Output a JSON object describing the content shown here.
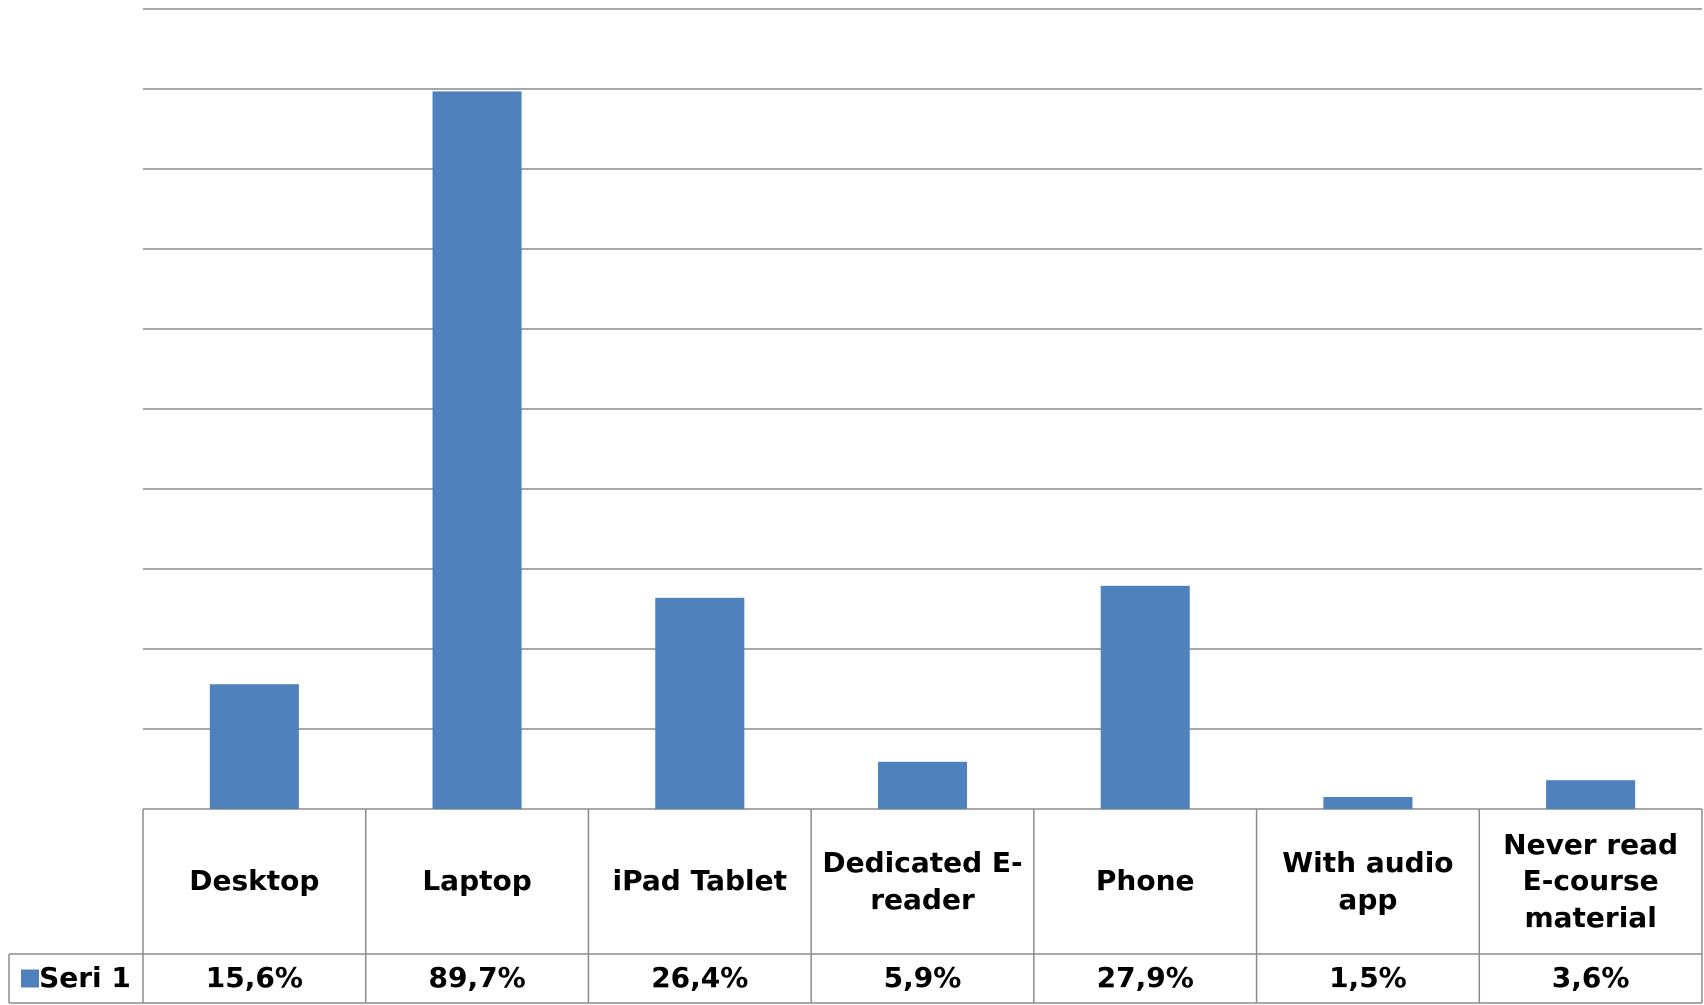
{
  "chart_data": {
    "type": "bar",
    "categories": [
      "Desktop",
      "Laptop",
      "iPad Tablet",
      "Dedicated E-reader",
      "Phone",
      "With audio app",
      "Never read E-course material"
    ],
    "series": [
      {
        "name": "Seri 1",
        "color": "#4f81bd",
        "values": [
          15.6,
          89.7,
          26.4,
          5.9,
          27.9,
          1.5,
          3.6
        ],
        "value_labels": [
          "15,6%",
          "89,7%",
          "26,4%",
          "5,9%",
          "27,9%",
          "1,5%",
          "3,6%"
        ]
      }
    ],
    "ylim": [
      0,
      100
    ],
    "yticks": [
      0,
      10,
      20,
      30,
      40,
      50,
      60,
      70,
      80,
      90,
      100
    ],
    "grid": true,
    "data_table": true
  }
}
